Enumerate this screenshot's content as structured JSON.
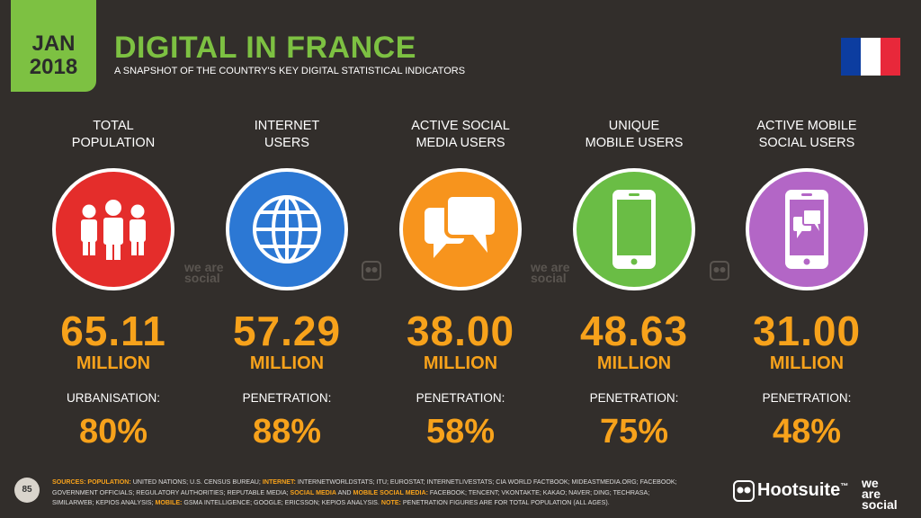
{
  "header": {
    "date_line1": "JAN",
    "date_line2": "2018",
    "title": "DIGITAL IN FRANCE",
    "subtitle": "A SNAPSHOT OF THE COUNTRY'S KEY DIGITAL STATISTICAL INDICATORS"
  },
  "stats": [
    {
      "heading_line1": "TOTAL",
      "heading_line2": "POPULATION",
      "value": "65.11",
      "unit": "MILLION",
      "label": "URBANISATION:",
      "percent": "80%",
      "color": "#e42d2b"
    },
    {
      "heading_line1": "INTERNET",
      "heading_line2": "USERS",
      "value": "57.29",
      "unit": "MILLION",
      "label": "PENETRATION:",
      "percent": "88%",
      "color": "#2c78d4"
    },
    {
      "heading_line1": "ACTIVE SOCIAL",
      "heading_line2": "MEDIA USERS",
      "value": "38.00",
      "unit": "MILLION",
      "label": "PENETRATION:",
      "percent": "58%",
      "color": "#f7941d"
    },
    {
      "heading_line1": "UNIQUE",
      "heading_line2": "MOBILE USERS",
      "value": "48.63",
      "unit": "MILLION",
      "label": "PENETRATION:",
      "percent": "75%",
      "color": "#6abd45"
    },
    {
      "heading_line1": "ACTIVE MOBILE",
      "heading_line2": "SOCIAL USERS",
      "value": "31.00",
      "unit": "MILLION",
      "label": "PENETRATION:",
      "percent": "48%",
      "color": "#b366c6"
    }
  ],
  "watermarks": [
    "we are social",
    "we are social"
  ],
  "footer": {
    "page_number": "85",
    "notes": [
      {
        "text": "SOURCES: POPULATION:",
        "highlight": true
      },
      {
        "text": " UNITED NATIONS; U.S. CENSUS BUREAU; ",
        "highlight": false
      },
      {
        "text": "INTERNET:",
        "highlight": true
      },
      {
        "text": " INTERNETWORLDSTATS; ITU; EUROSTAT; INTERNETLIVESTATS; CIA WORLD FACTBOOK; MIDEASTMEDIA.ORG; FACEBOOK; GOVERNMENT OFFICIALS; REGULATORY AUTHORITIES; REPUTABLE MEDIA; ",
        "highlight": false
      },
      {
        "text": "SOCIAL MEDIA",
        "highlight": true
      },
      {
        "text": " AND ",
        "highlight": false
      },
      {
        "text": "MOBILE SOCIAL MEDIA:",
        "highlight": true
      },
      {
        "text": " FACEBOOK; TENCENT; VKONTAKTE; KAKAO; NAVER; DING; TECHRASA; SIMILARWEB; KEPIOS ANALYSIS; ",
        "highlight": false
      },
      {
        "text": "MOBILE:",
        "highlight": true
      },
      {
        "text": " GSMA INTELLIGENCE; GOOGLE; ERICSSON; KEPIOS ANALYSIS. ",
        "highlight": false
      },
      {
        "text": "NOTE:",
        "highlight": true
      },
      {
        "text": " PENETRATION FIGURES ARE FOR TOTAL POPULATION (ALL AGES).",
        "highlight": false
      }
    ],
    "brand1": "Hootsuite",
    "brand1_mark": "™",
    "brand2_line1": "we",
    "brand2_line2": "are",
    "brand2_line3": "social"
  }
}
